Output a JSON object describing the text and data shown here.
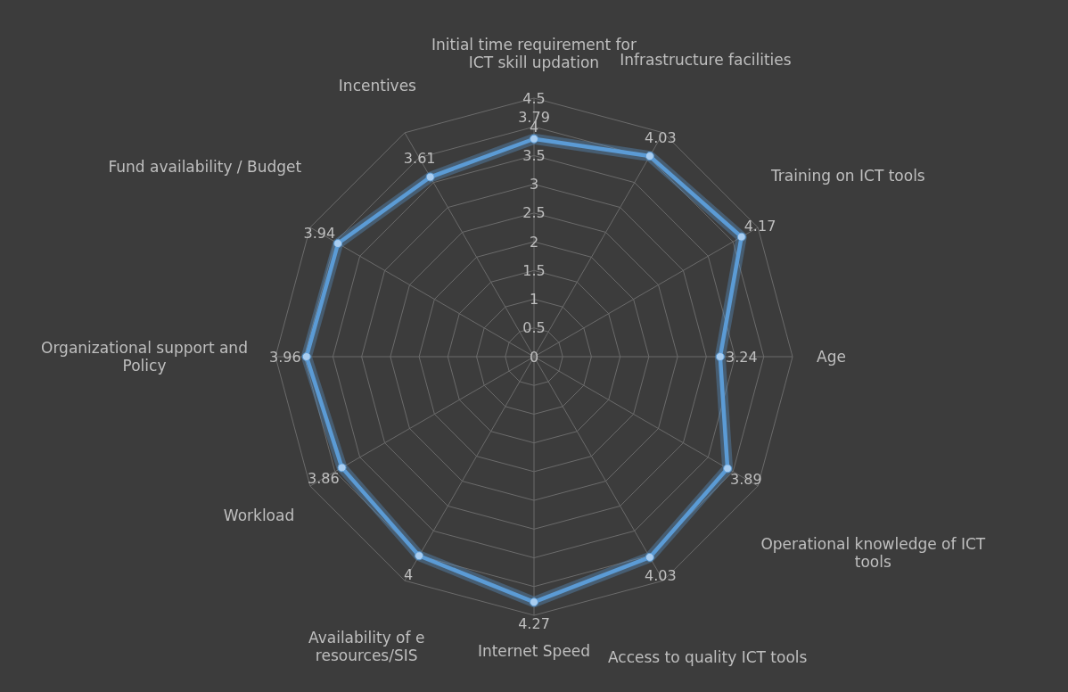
{
  "chart_data": {
    "type": "radar",
    "categories": [
      "Initial time requirement for ICT skill updation",
      "Infrastructure facilities",
      "Training on ICT tools",
      "Age",
      "Operational knowledge of ICT tools",
      "Access to quality ICT tools",
      "Internet Speed",
      "Availability of e resources/SIS",
      "Workload",
      "Organizational support and Policy",
      "Fund availability / Budget",
      "Incentives"
    ],
    "series": [
      {
        "color": "#5b9bd5",
        "values": [
          3.79,
          4.03,
          4.17,
          3.24,
          3.89,
          4.03,
          4.27,
          4,
          3.86,
          3.96,
          3.94,
          3.61
        ]
      }
    ],
    "ylim": [
      0,
      4.5
    ],
    "yticks": [
      0,
      0.5,
      1,
      1.5,
      2,
      2.5,
      3,
      3.5,
      4,
      4.5
    ],
    "grid": true,
    "marker": "circle",
    "data_labels": true
  }
}
